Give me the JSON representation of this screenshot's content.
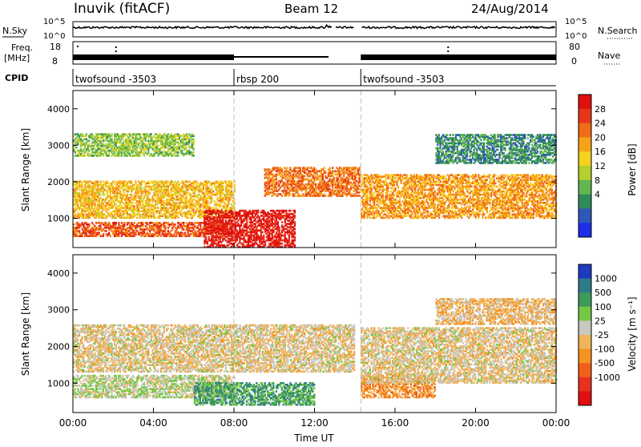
{
  "header": {
    "station": "Inuvik (fitACF)",
    "beam": "Beam 12",
    "date": "24/Aug/2014"
  },
  "strip_labels": {
    "nsky": "N.Sky",
    "nsky_ticks": [
      "10^5",
      "10^0"
    ],
    "nsearch": "N.Search",
    "nsearch_ticks": [
      "10^5",
      "10^0"
    ],
    "freq": "Freq.",
    "freq_unit": "[MHz]",
    "freq_ticks": [
      "18",
      "8"
    ],
    "nave": "Nave",
    "nave_ticks": [
      "80",
      "0"
    ],
    "cpid": "CPID"
  },
  "cpid_segments": [
    {
      "label": "twofsound -3503",
      "start": 0,
      "end": 8.0
    },
    {
      "label": "rbsp 200",
      "start": 8.0,
      "end": 14.3
    },
    {
      "label": "twofsound -3503",
      "start": 14.3,
      "end": 24.0
    }
  ],
  "axes": {
    "ylabel": "Slant Range [km]",
    "xlabel": "Time UT",
    "x_ticks": [
      "00:00",
      "04:00",
      "08:00",
      "12:00",
      "16:00",
      "20:00",
      "00:00"
    ],
    "y_ticks": [
      "1000",
      "2000",
      "3000",
      "4000"
    ]
  },
  "power_scale": {
    "label": "Power [dB]",
    "ticks": [
      "4",
      "8",
      "12",
      "16",
      "20",
      "24",
      "28"
    ],
    "colors": [
      "#1e2ee8",
      "#2f57b8",
      "#2f8a5a",
      "#63b54e",
      "#b4cf2e",
      "#f5d21e",
      "#f7a319",
      "#f06c17",
      "#e8361b",
      "#e01010"
    ]
  },
  "velocity_scale": {
    "label": "Velocity [m s⁻¹]",
    "ticks": [
      "1000",
      "500",
      "100",
      "25",
      "-25",
      "-100",
      "-500",
      "-1000"
    ],
    "colors": [
      "#1f3ac0",
      "#2f7a8a",
      "#3e9a5b",
      "#74c944",
      "#c8c8c0",
      "#f0b45a",
      "#f59320",
      "#f06018",
      "#e83020",
      "#e01010"
    ]
  },
  "chart_data": [
    {
      "type": "heatmap",
      "name": "power",
      "xlabel": "Time UT",
      "ylabel": "Slant Range [km]",
      "xlim": [
        0,
        24
      ],
      "ylim": [
        200,
        4500
      ],
      "colorbar_label": "Power [dB]",
      "colorbar_range": [
        0,
        30
      ],
      "regions": [
        {
          "t": [
            0,
            8
          ],
          "r": [
            500,
            900
          ],
          "value": 24
        },
        {
          "t": [
            0,
            8
          ],
          "r": [
            1000,
            2000
          ],
          "value": 18
        },
        {
          "t": [
            0,
            6
          ],
          "r": [
            2700,
            3300
          ],
          "value": 12
        },
        {
          "t": [
            6.5,
            11
          ],
          "r": [
            200,
            1200
          ],
          "value": 28
        },
        {
          "t": [
            9.5,
            14.2
          ],
          "r": [
            1600,
            2400
          ],
          "value": 22
        },
        {
          "t": [
            14.3,
            24
          ],
          "r": [
            1000,
            2200
          ],
          "value": 20
        },
        {
          "t": [
            18,
            24
          ],
          "r": [
            2500,
            3300
          ],
          "value": 8
        }
      ]
    },
    {
      "type": "heatmap",
      "name": "velocity",
      "xlabel": "Time UT",
      "ylabel": "Slant Range [km]",
      "xlim": [
        0,
        24
      ],
      "ylim": [
        200,
        4500
      ],
      "colorbar_label": "Velocity [m s⁻¹]",
      "colorbar_range": [
        -1000,
        1000
      ],
      "regions": [
        {
          "t": [
            0,
            8
          ],
          "r": [
            600,
            1200
          ],
          "value": 150
        },
        {
          "t": [
            0,
            14
          ],
          "r": [
            1300,
            2600
          ],
          "value": 0
        },
        {
          "t": [
            6,
            12
          ],
          "r": [
            400,
            1000
          ],
          "value": 500
        },
        {
          "t": [
            14.3,
            18
          ],
          "r": [
            600,
            1200
          ],
          "value": -300
        },
        {
          "t": [
            14.3,
            24
          ],
          "r": [
            1000,
            2500
          ],
          "value": 0
        },
        {
          "t": [
            18,
            24
          ],
          "r": [
            2600,
            3300
          ],
          "value": -100
        }
      ]
    }
  ]
}
